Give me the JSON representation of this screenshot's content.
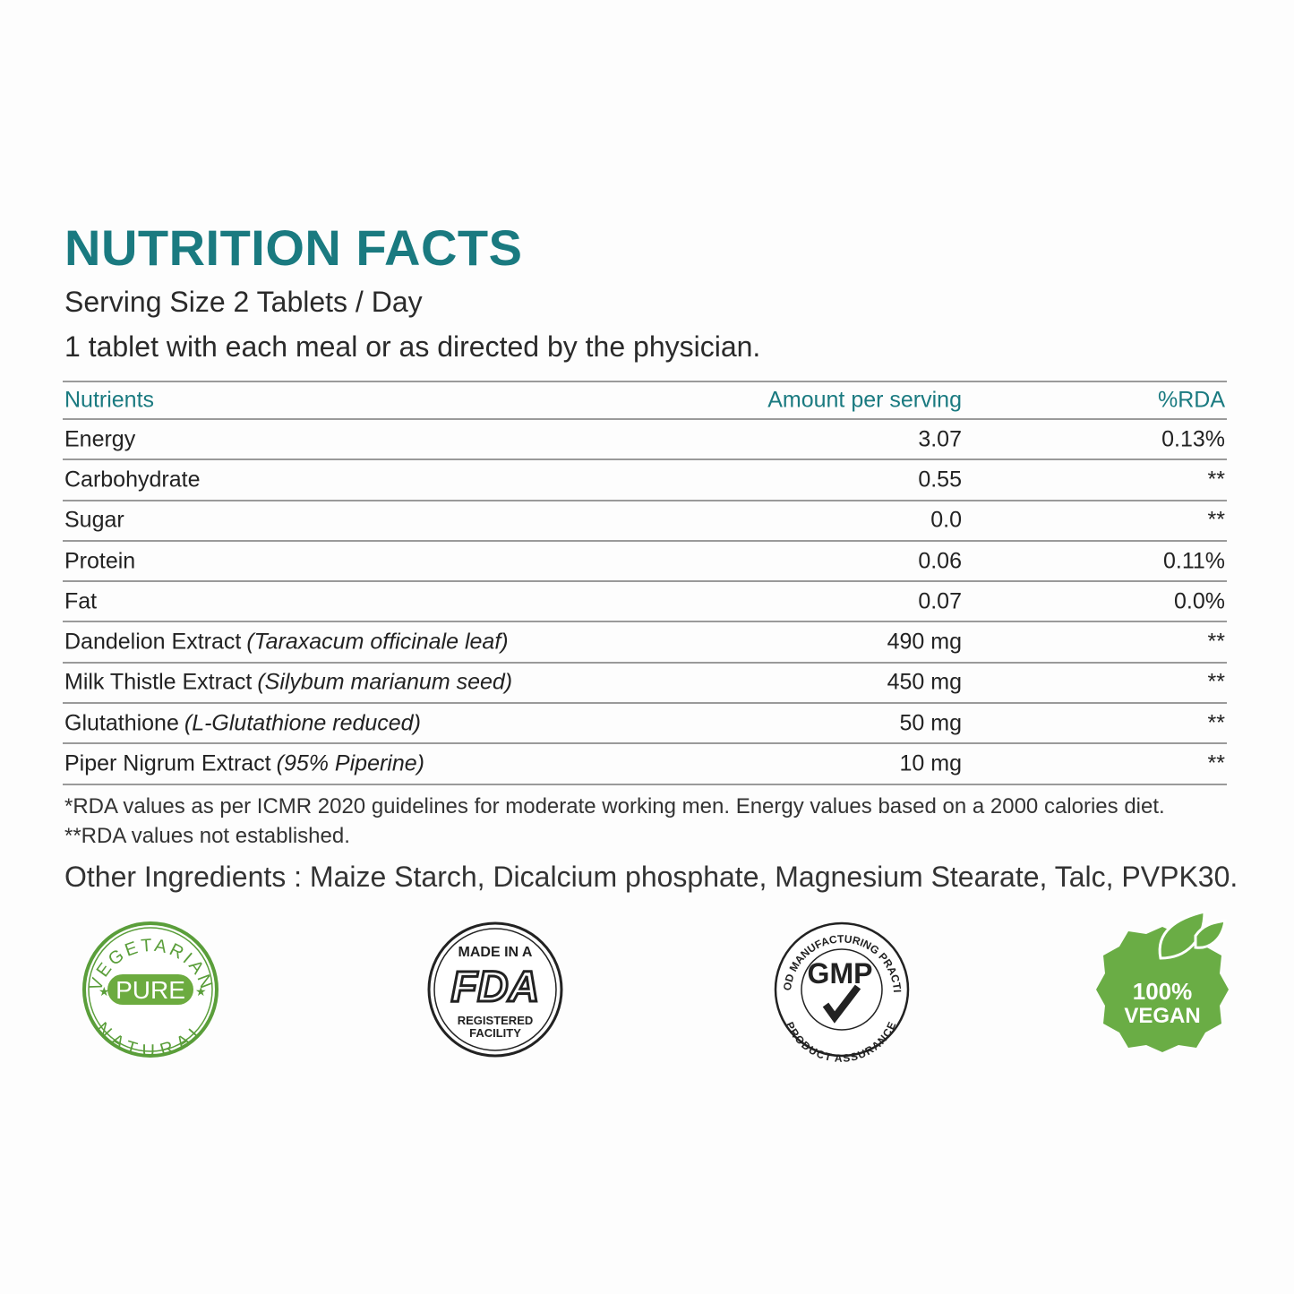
{
  "header": {
    "title": "NUTRITION FACTS",
    "serving_size": "Serving Size 2 Tablets / Day",
    "directions": "1 tablet with each meal or as directed by the physician."
  },
  "table": {
    "columns": [
      "Nutrients",
      "Amount per serving",
      "%RDA"
    ],
    "rows": [
      {
        "name": "Energy",
        "amount": "3.07",
        "rda": "0.13%"
      },
      {
        "name": "Carbohydrate",
        "amount": "0.55",
        "rda": "**"
      },
      {
        "name": "Sugar",
        "amount": "0.0",
        "rda": "**"
      },
      {
        "name": "Protein",
        "amount": "0.06",
        "rda": "0.11%"
      },
      {
        "name": "Fat",
        "amount": "0.07",
        "rda": "0.0%"
      },
      {
        "name": "Dandelion Extract",
        "detail": "(Taraxacum officinale leaf)",
        "amount": "490 mg",
        "rda": "**"
      },
      {
        "name": "Milk Thistle Extract",
        "detail": "(Silybum marianum seed)",
        "amount": "450 mg",
        "rda": "**"
      },
      {
        "name": "Glutathione",
        "detail": "(L-Glutathione reduced)",
        "amount": "50 mg",
        "rda": "**"
      },
      {
        "name": "Piper Nigrum Extract",
        "detail": "(95% Piperine)",
        "amount": "10 mg",
        "rda": "**"
      }
    ]
  },
  "footnotes": [
    "*RDA values as per ICMR 2020 guidelines for moderate working men. Energy values based on a 2000 calories diet.",
    "**RDA values not established."
  ],
  "other_ingredients": "Other Ingredients : Maize Starch, Dicalcium phosphate, Magnesium Stearate, Talc, PVPK30.",
  "badges": {
    "vegetarian": {
      "top": "VEGETARIAN",
      "center": "PURE",
      "bottom": "NATURAL"
    },
    "fda": {
      "top": "MADE IN A",
      "logo": "FDA",
      "bottom": [
        "REGISTERED",
        "FACILITY"
      ]
    },
    "gmp": {
      "ring_top": "GOOD MANUFACTURING PRACTICE",
      "center": "GMP",
      "ring_bottom": "PRODUCT ASSURANCE"
    },
    "vegan": [
      "100%",
      "VEGAN"
    ]
  }
}
